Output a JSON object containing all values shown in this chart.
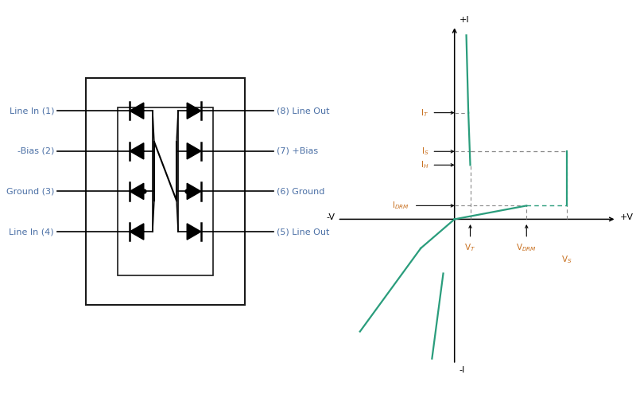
{
  "bg_color": "#ffffff",
  "text_color_blue": "#4a6fa5",
  "text_color_orange": "#c87020",
  "curve_color": "#2a9d7c",
  "line_color": "#1a1a1a",
  "left_labels": [
    "Line In (1)",
    "-Bias (2)",
    "Ground (3)",
    "Line In (4)"
  ],
  "right_labels": [
    "(8) Line Out",
    "(7) +Bias",
    "(6) Ground",
    "(5) Line Out"
  ],
  "iv_labels": {
    "plus_I": "+I",
    "minus_I": "-I",
    "plus_V": "+V",
    "minus_V": "-V",
    "IT": "I$_T$",
    "IS": "I$_S$",
    "IH": "I$_H$",
    "IDRM": "I$_{DRM}$",
    "VT": "V$_T$",
    "VDRM": "V$_{DRM}$",
    "VS": "V$_S$"
  },
  "VT": 0.7,
  "VDRM": 3.2,
  "VS": 5.0,
  "IT": 5.5,
  "IS": 3.5,
  "IH": 2.8,
  "IDRM": 0.7
}
